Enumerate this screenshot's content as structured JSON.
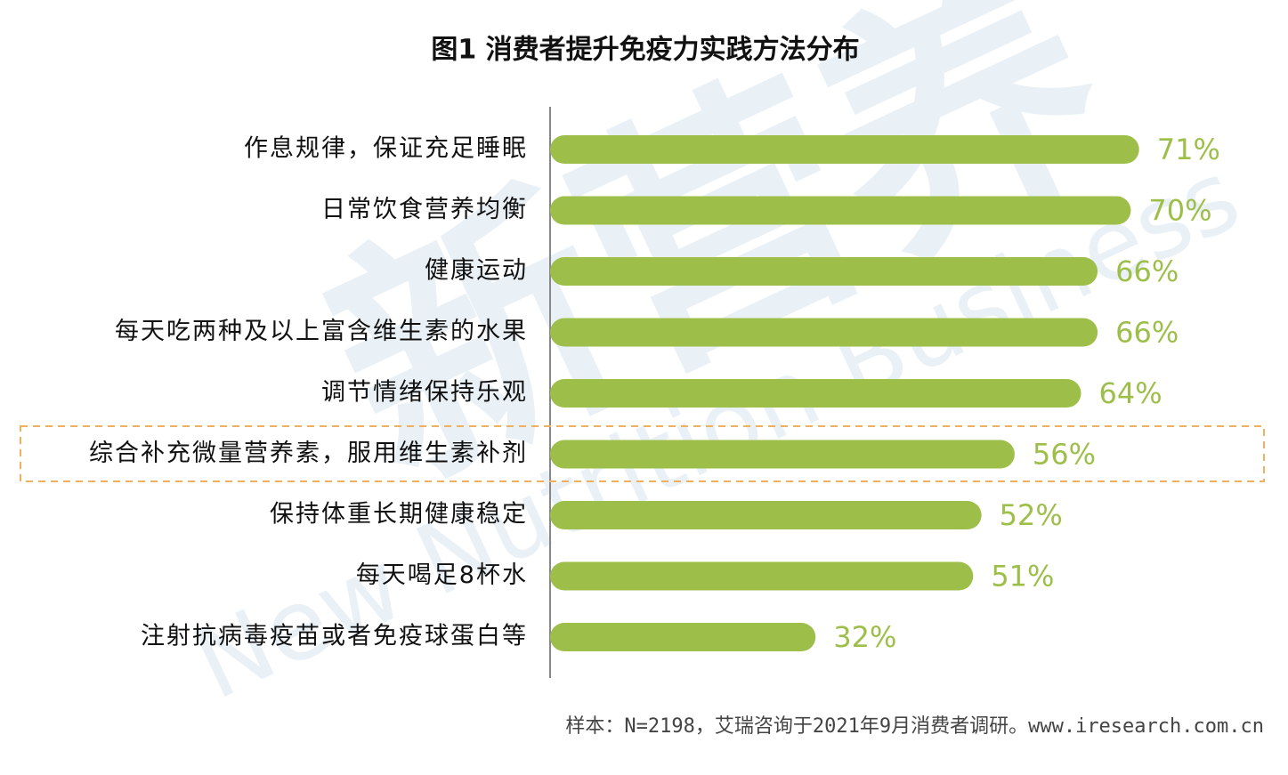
{
  "chart_data": {
    "type": "bar",
    "orientation": "horizontal",
    "title": "图1 消费者提升免疫力实践方法分布",
    "categories": [
      "作息规律，保证充足睡眠",
      "日常饮食营养均衡",
      "健康运动",
      "每天吃两种及以上富含维生素的水果",
      "调节情绪保持乐观",
      "综合补充微量营养素，服用维生素补剂",
      "保持体重长期健康稳定",
      "每天喝足8杯水",
      "注射抗病毒疫苗或者免疫球蛋白等"
    ],
    "values": [
      71,
      70,
      66,
      66,
      64,
      56,
      52,
      51,
      32
    ],
    "value_labels": [
      "71%",
      "70%",
      "66%",
      "66%",
      "64%",
      "56%",
      "52%",
      "51%",
      "32%"
    ],
    "color": "#9dbf4a",
    "note": "样本：N=2198，艾瑞咨询于2021年9月消费者调研。www.iresearch.com.cn",
    "watermark": "新营养",
    "watermark_en": "New Nutrition Business"
  }
}
